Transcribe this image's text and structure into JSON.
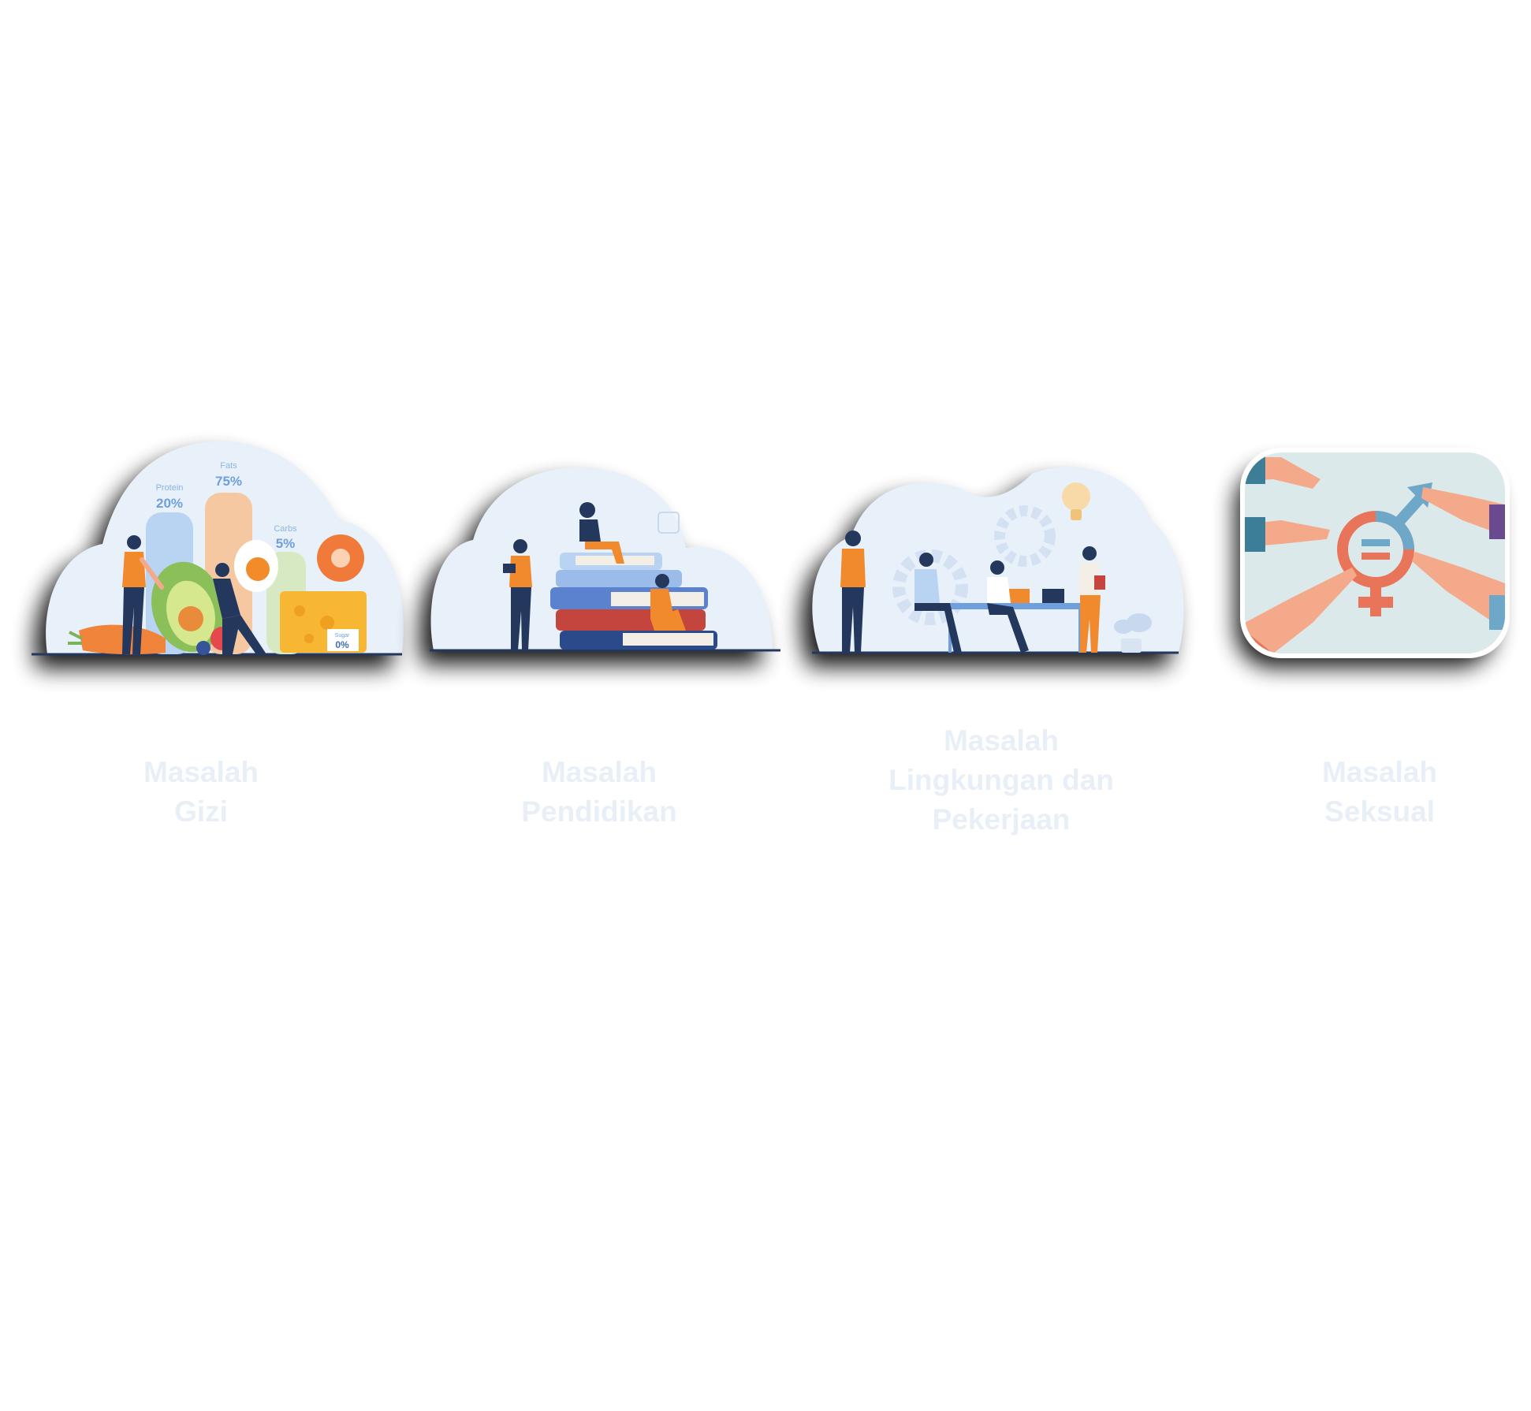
{
  "colors": {
    "blob": "#e8f0fa",
    "navy": "#24385e",
    "orange": "#f08a2c",
    "skin": "#f4a98a",
    "caption": "#e8eff7",
    "shadow": "#000000"
  },
  "cards": [
    {
      "id": "gizi",
      "caption": [
        "Masalah",
        "Gizi"
      ],
      "chart_labels": {
        "protein_title": "Protein",
        "protein_value": "20%",
        "fats_title": "Fats",
        "fats_value": "75%",
        "carbs_title": "Carbs",
        "carbs_value": "5%",
        "sugar_title": "Sugar",
        "sugar_value": "0%"
      }
    },
    {
      "id": "pendidikan",
      "caption": [
        "Masalah",
        "Pendidikan"
      ]
    },
    {
      "id": "lingkungan",
      "caption": [
        "Masalah",
        "Lingkungan dan",
        "Pekerjaan"
      ]
    },
    {
      "id": "seksual",
      "caption": [
        "Masalah",
        "Seksual"
      ]
    }
  ]
}
